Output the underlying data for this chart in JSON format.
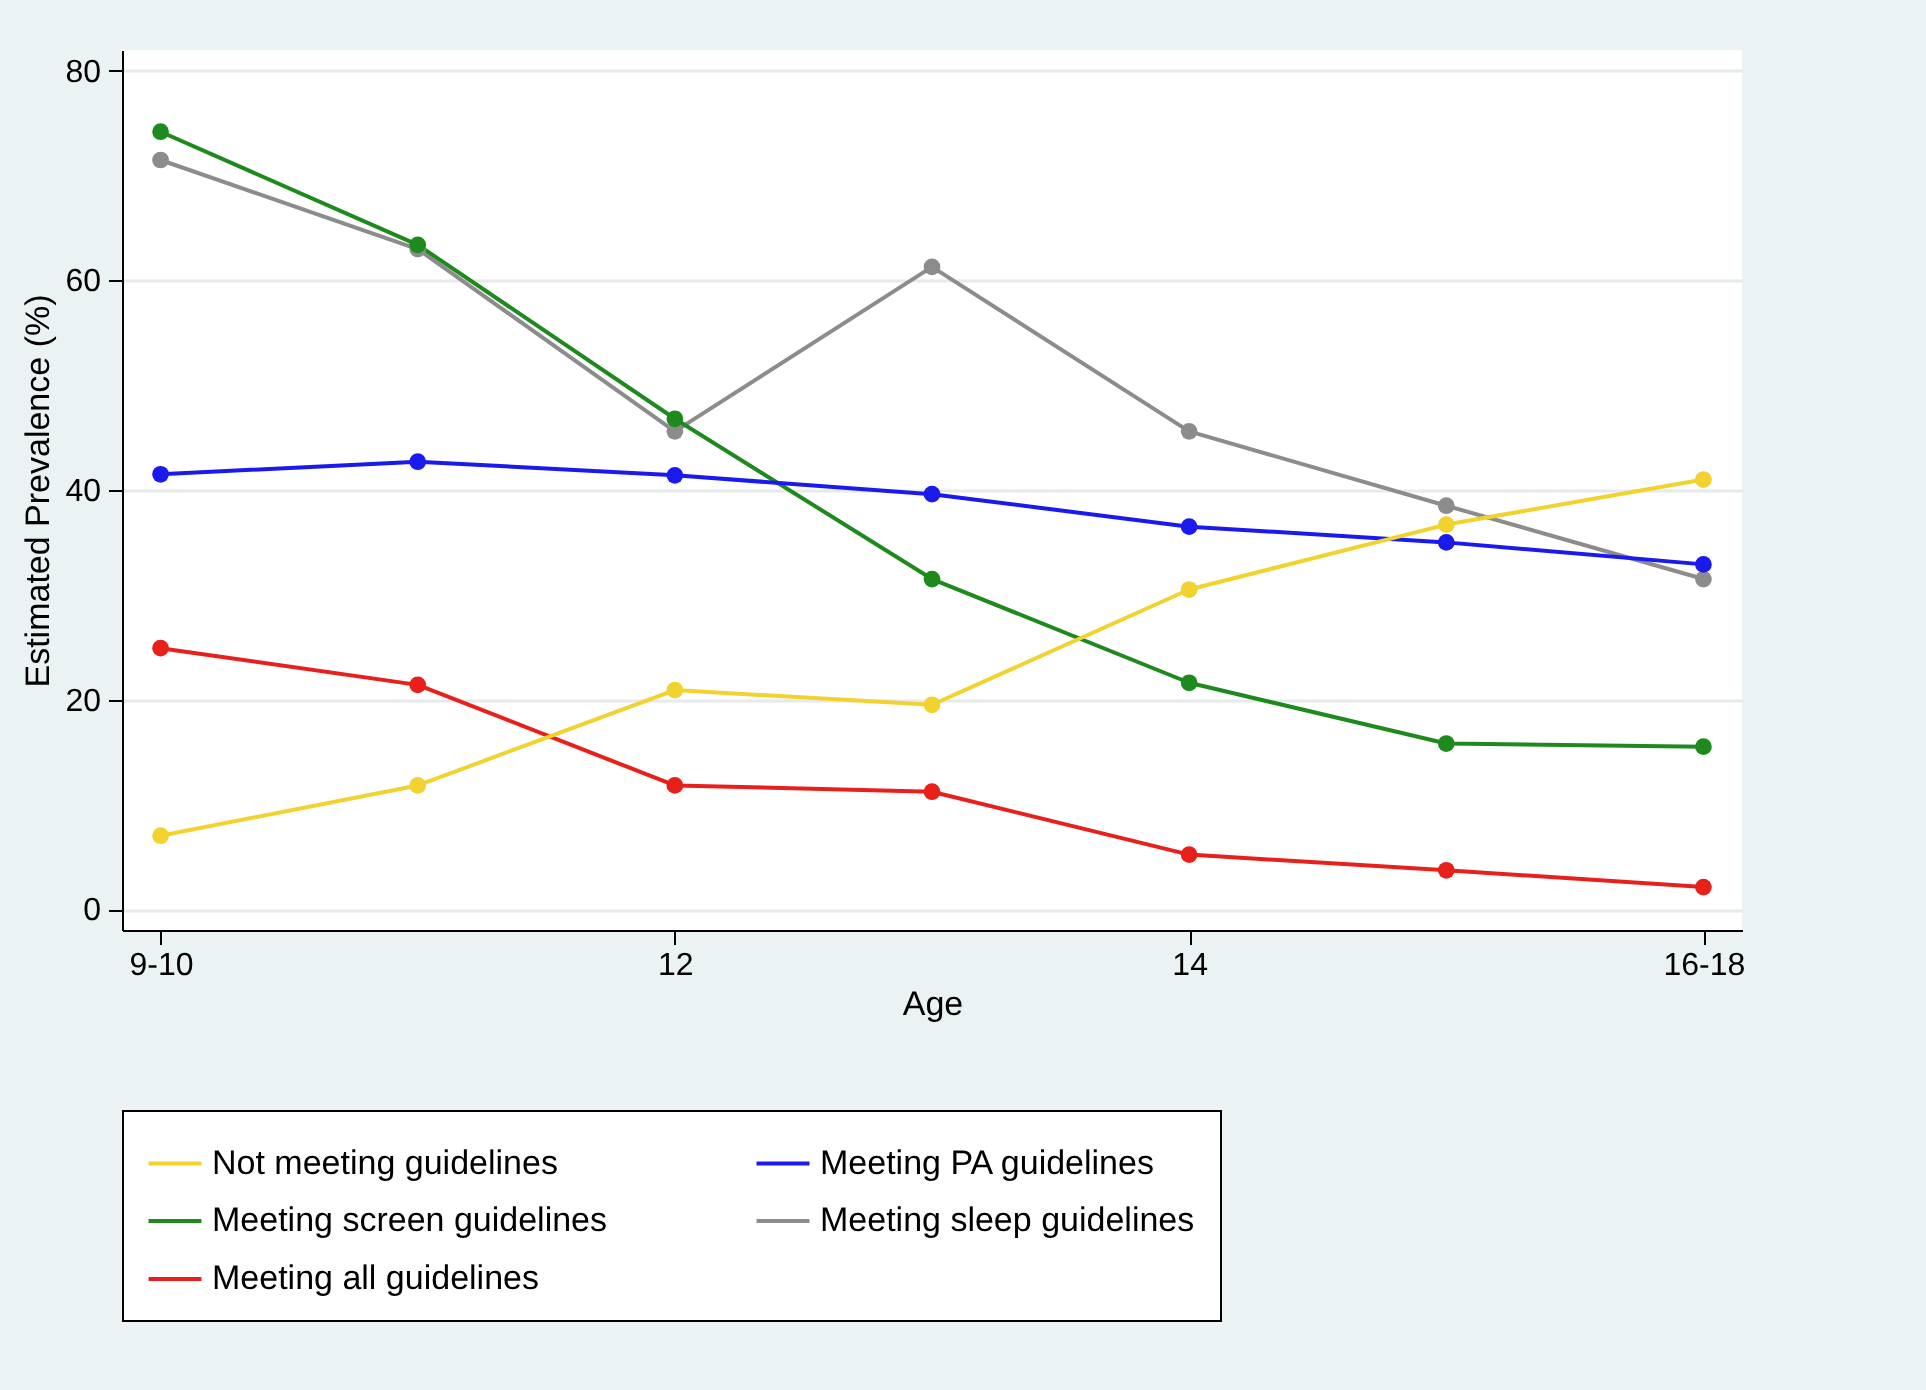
{
  "chart_data": {
    "type": "line",
    "xlabel": "Age",
    "ylabel": "Estimated Prevalence (%)",
    "categories": [
      "9-10",
      null,
      "12",
      null,
      "14",
      null,
      "16-18"
    ],
    "series": [
      {
        "name": "Not meeting guidelines",
        "color": "#f2d22e",
        "values": [
          7,
          11.8,
          20.9,
          19.5,
          30.5,
          36.7,
          41
        ]
      },
      {
        "name": "Meeting PA guidelines",
        "color": "#1a1aee",
        "values": [
          41.5,
          42.7,
          41.4,
          39.6,
          36.5,
          35,
          32.9
        ]
      },
      {
        "name": "Meeting screen guidelines",
        "color": "#1e8a1e",
        "values": [
          74.2,
          63.4,
          46.8,
          31.5,
          21.6,
          15.8,
          15.5
        ]
      },
      {
        "name": "Meeting sleep guidelines",
        "color": "#8c8c8c",
        "values": [
          71.5,
          63,
          45.6,
          61.3,
          45.6,
          38.5,
          31.5
        ]
      },
      {
        "name": "Meeting all guidelines",
        "color": "#e8201c",
        "values": [
          24.9,
          21.4,
          11.8,
          11.2,
          5.2,
          3.7,
          2.1
        ]
      }
    ],
    "ylim": [
      -2,
      82
    ],
    "yticks": [
      0,
      20,
      40,
      60,
      80
    ],
    "grid": "y",
    "legend": "bottom",
    "marker": "circle",
    "line_style": "solid"
  }
}
